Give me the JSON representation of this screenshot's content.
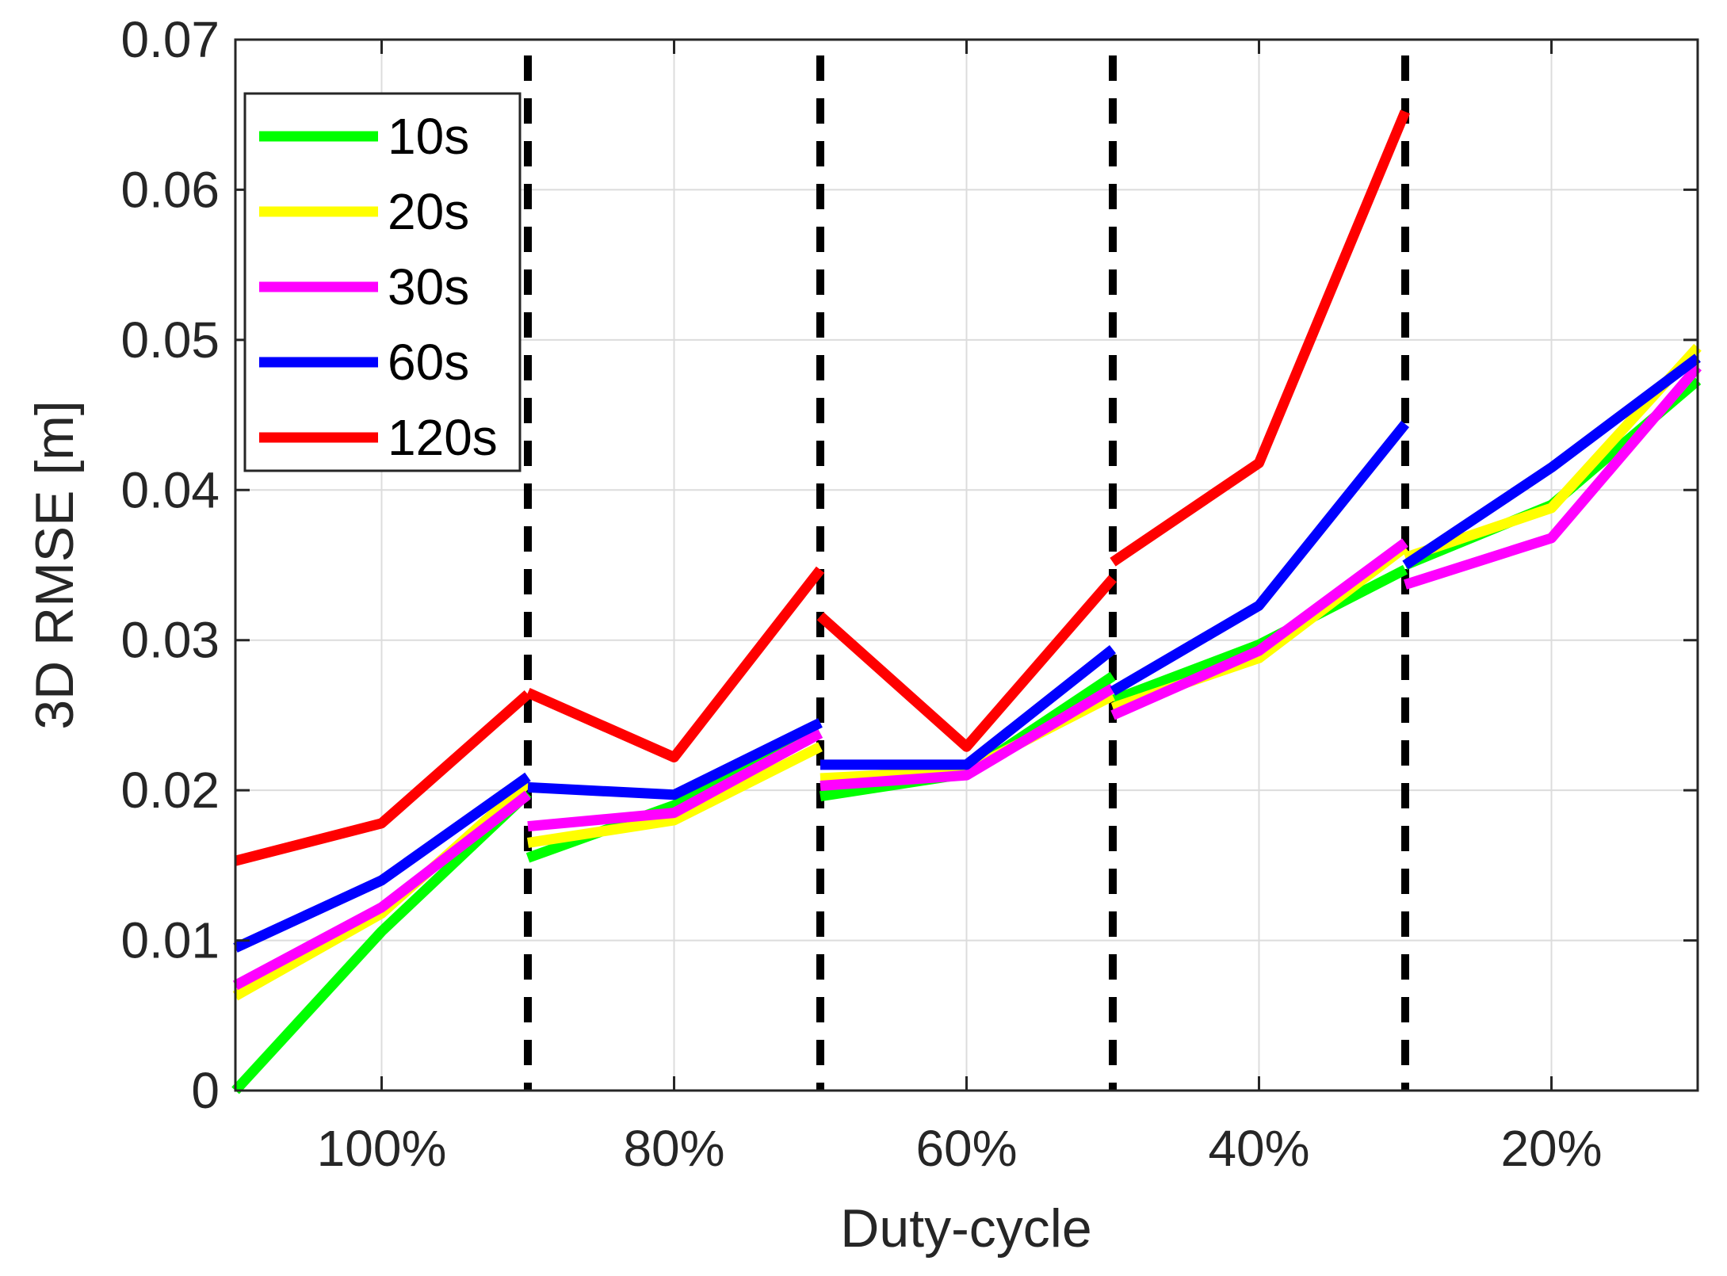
{
  "chart_data": {
    "type": "line",
    "title": "",
    "xlabel": "Duty-cycle",
    "ylabel": "3D RMSE [m]",
    "xlim": [
      0,
      10
    ],
    "ylim": [
      0,
      0.07
    ],
    "grid": true,
    "legend_position": "top-left",
    "yticks": [
      {
        "value": 0,
        "label": "0"
      },
      {
        "value": 0.01,
        "label": "0.01"
      },
      {
        "value": 0.02,
        "label": "0.02"
      },
      {
        "value": 0.03,
        "label": "0.03"
      },
      {
        "value": 0.04,
        "label": "0.04"
      },
      {
        "value": 0.05,
        "label": "0.05"
      },
      {
        "value": 0.06,
        "label": "0.06"
      },
      {
        "value": 0.07,
        "label": "0.07"
      }
    ],
    "xticks": [
      {
        "value": 1,
        "label": "100%"
      },
      {
        "value": 3,
        "label": "80%"
      },
      {
        "value": 5,
        "label": "60%"
      },
      {
        "value": 7,
        "label": "40%"
      },
      {
        "value": 9,
        "label": "20%"
      }
    ],
    "separators": [
      2,
      4,
      6,
      8
    ],
    "series": [
      {
        "name": "10s",
        "color": "#00ff00",
        "segments": [
          [
            [
              0,
              0.0
            ],
            [
              1,
              0.0106
            ],
            [
              2,
              0.0198
            ]
          ],
          [
            [
              2,
              0.0155
            ],
            [
              3,
              0.019
            ],
            [
              4,
              0.0238
            ]
          ],
          [
            [
              4,
              0.0196
            ],
            [
              5,
              0.0211
            ],
            [
              6,
              0.0276
            ]
          ],
          [
            [
              6,
              0.026
            ],
            [
              7,
              0.0297
            ],
            [
              8,
              0.0347
            ]
          ],
          [
            [
              8,
              0.035
            ],
            [
              9,
              0.039
            ],
            [
              10,
              0.0473
            ]
          ]
        ]
      },
      {
        "name": "20s",
        "color": "#ffff00",
        "segments": [
          [
            [
              0,
              0.0063
            ],
            [
              1,
              0.0118
            ],
            [
              2,
              0.0205
            ]
          ],
          [
            [
              2,
              0.0165
            ],
            [
              3,
              0.018
            ],
            [
              4,
              0.0229
            ]
          ],
          [
            [
              4,
              0.0208
            ],
            [
              5,
              0.0213
            ],
            [
              6,
              0.0263
            ]
          ],
          [
            [
              6,
              0.0255
            ],
            [
              7,
              0.0288
            ],
            [
              8,
              0.0362
            ]
          ],
          [
            [
              8,
              0.0355
            ],
            [
              9,
              0.0388
            ],
            [
              10,
              0.0495
            ]
          ]
        ]
      },
      {
        "name": "30s",
        "color": "#ff00ff",
        "segments": [
          [
            [
              0,
              0.007
            ],
            [
              1,
              0.0122
            ],
            [
              2,
              0.0197
            ]
          ],
          [
            [
              2,
              0.0176
            ],
            [
              3,
              0.0185
            ],
            [
              4,
              0.0238
            ]
          ],
          [
            [
              4,
              0.0203
            ],
            [
              5,
              0.021
            ],
            [
              6,
              0.0268
            ]
          ],
          [
            [
              6,
              0.025
            ],
            [
              7,
              0.0293
            ],
            [
              8,
              0.0365
            ]
          ],
          [
            [
              8,
              0.0337
            ],
            [
              9,
              0.0368
            ],
            [
              10,
              0.0482
            ]
          ]
        ]
      },
      {
        "name": "60s",
        "color": "#0000ff",
        "segments": [
          [
            [
              0,
              0.0095
            ],
            [
              1,
              0.014
            ],
            [
              2,
              0.0209
            ]
          ],
          [
            [
              2,
              0.0202
            ],
            [
              3,
              0.0197
            ],
            [
              4,
              0.0245
            ]
          ],
          [
            [
              4,
              0.0217
            ],
            [
              5,
              0.0217
            ],
            [
              6,
              0.0294
            ]
          ],
          [
            [
              6,
              0.0266
            ],
            [
              7,
              0.0323
            ],
            [
              8,
              0.0444
            ]
          ],
          [
            [
              8,
              0.035
            ],
            [
              9,
              0.0415
            ],
            [
              10,
              0.0488
            ]
          ]
        ]
      },
      {
        "name": "120s",
        "color": "#ff0000",
        "segments": [
          [
            [
              0,
              0.0153
            ],
            [
              1,
              0.0178
            ],
            [
              2,
              0.0264
            ]
          ],
          [
            [
              2,
              0.0265
            ],
            [
              3,
              0.0222
            ],
            [
              4,
              0.0347
            ]
          ],
          [
            [
              4,
              0.0316
            ],
            [
              5,
              0.0229
            ],
            [
              6,
              0.0341
            ]
          ],
          [
            [
              6,
              0.0352
            ],
            [
              7,
              0.0418
            ],
            [
              8,
              0.0652
            ]
          ]
        ]
      }
    ]
  }
}
